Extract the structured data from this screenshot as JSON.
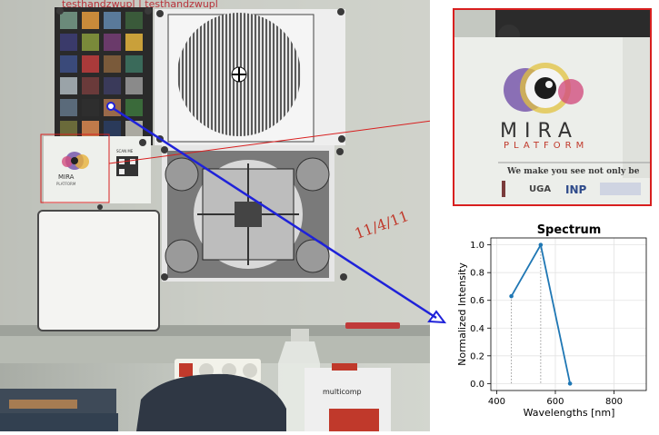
{
  "scene": {
    "handwriting_top": "testhandzwupl | testhandzwupl",
    "handwriting_side": "11/4/11",
    "poster": {
      "brand_top": "MIRA",
      "brand_bottom": "PLATFORM",
      "tagline": "We make you see not only be",
      "scan_label": "SCAN ME",
      "logo_uga": "UGA",
      "logo_inp": "INP"
    },
    "box_label": "multicomp",
    "colors": {
      "marker_line": "#1f22d9",
      "zoom_border": "#d81f1f",
      "roi_border": "#d81f1f"
    }
  },
  "chart_data": {
    "type": "line",
    "title": "Spectrum",
    "xlabel": "Wavelengths [nm]",
    "ylabel": "Normalized Intensity",
    "xlim": [
      380,
      910
    ],
    "ylim": [
      -0.05,
      1.05
    ],
    "xticks": [
      400,
      600,
      800
    ],
    "yticks": [
      0.0,
      0.2,
      0.4,
      0.6,
      0.8,
      1.0
    ],
    "grid": true,
    "series": [
      {
        "color": "#1f77b4",
        "x": [
          450,
          550,
          650
        ],
        "y": [
          0.63,
          1.0,
          0.0
        ]
      }
    ]
  }
}
